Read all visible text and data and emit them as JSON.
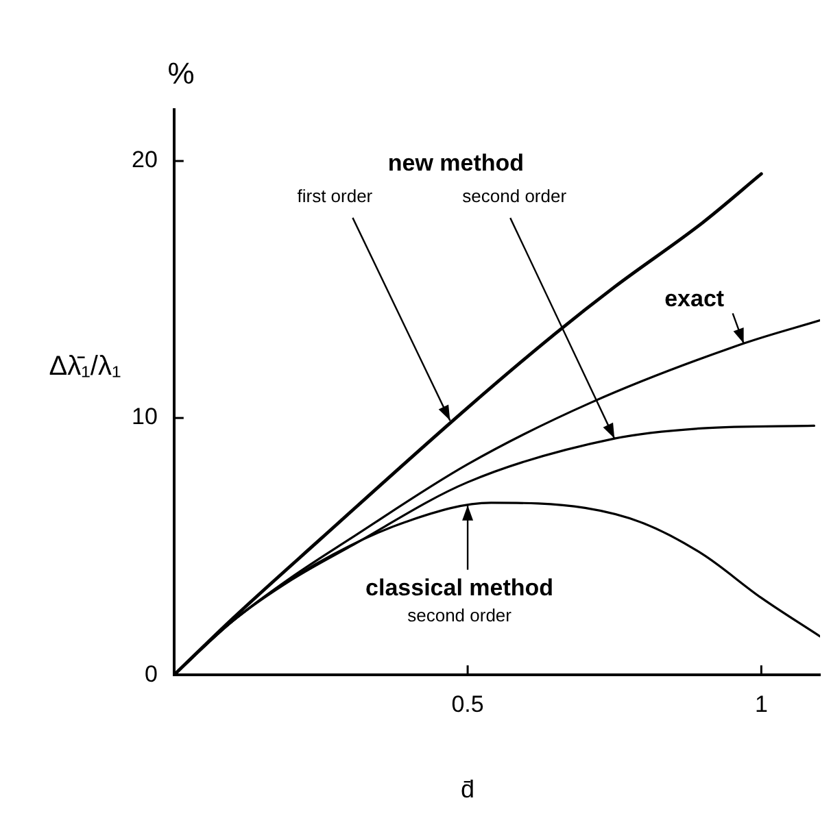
{
  "chart_data": {
    "type": "line",
    "xlabel": "d̄",
    "ylabel": "Δλ̄₁/λ₁",
    "xlim": [
      0,
      1.1
    ],
    "ylim": [
      0,
      22
    ],
    "xticks": [
      {
        "value": 0,
        "label": null
      },
      0.5,
      1
    ],
    "yticks": [
      0,
      10,
      20
    ],
    "grid": false,
    "legend": false,
    "marker": "none",
    "line_style": "solid",
    "series": [
      {
        "color": "#000000",
        "x": [
          0,
          0.1,
          0.25,
          0.5,
          0.65,
          0.75,
          0.9,
          1.0
        ],
        "values": [
          0,
          2.2,
          5.3,
          10.4,
          13.3,
          15.1,
          17.6,
          19.5
        ]
      },
      {
        "color": "#000000",
        "x": [
          0,
          0.1,
          0.2,
          0.3,
          0.5,
          0.71,
          0.97,
          1.1
        ],
        "values": [
          0,
          2.1,
          3.8,
          5.3,
          8.2,
          10.6,
          12.9,
          13.8
        ]
      },
      {
        "color": "#000000",
        "x": [
          0,
          0.1,
          0.2,
          0.3,
          0.5,
          0.75,
          0.9,
          1.09
        ],
        "values": [
          0,
          2.1,
          3.7,
          5.0,
          7.5,
          9.2,
          9.6,
          9.7
        ]
      },
      {
        "color": "#000000",
        "x": [
          0,
          0.1,
          0.24,
          0.4,
          0.54,
          0.7,
          0.8,
          0.9,
          1.0,
          1.1
        ],
        "values": [
          0,
          2.1,
          4.3,
          6.0,
          6.7,
          6.5,
          5.9,
          4.7,
          3.0,
          1.5
        ]
      }
    ],
    "annotations": [
      "%",
      "new method",
      {
        "text": "first order",
        "x": 0.47,
        "y": 9.9
      },
      {
        "text": "second order",
        "x": 0.75,
        "y": 9.2
      },
      {
        "text": "exact",
        "x": 0.97,
        "y": 12.9
      },
      {
        "text": "classical method",
        "x": 0.5,
        "y": 6.6
      },
      "second order"
    ]
  }
}
